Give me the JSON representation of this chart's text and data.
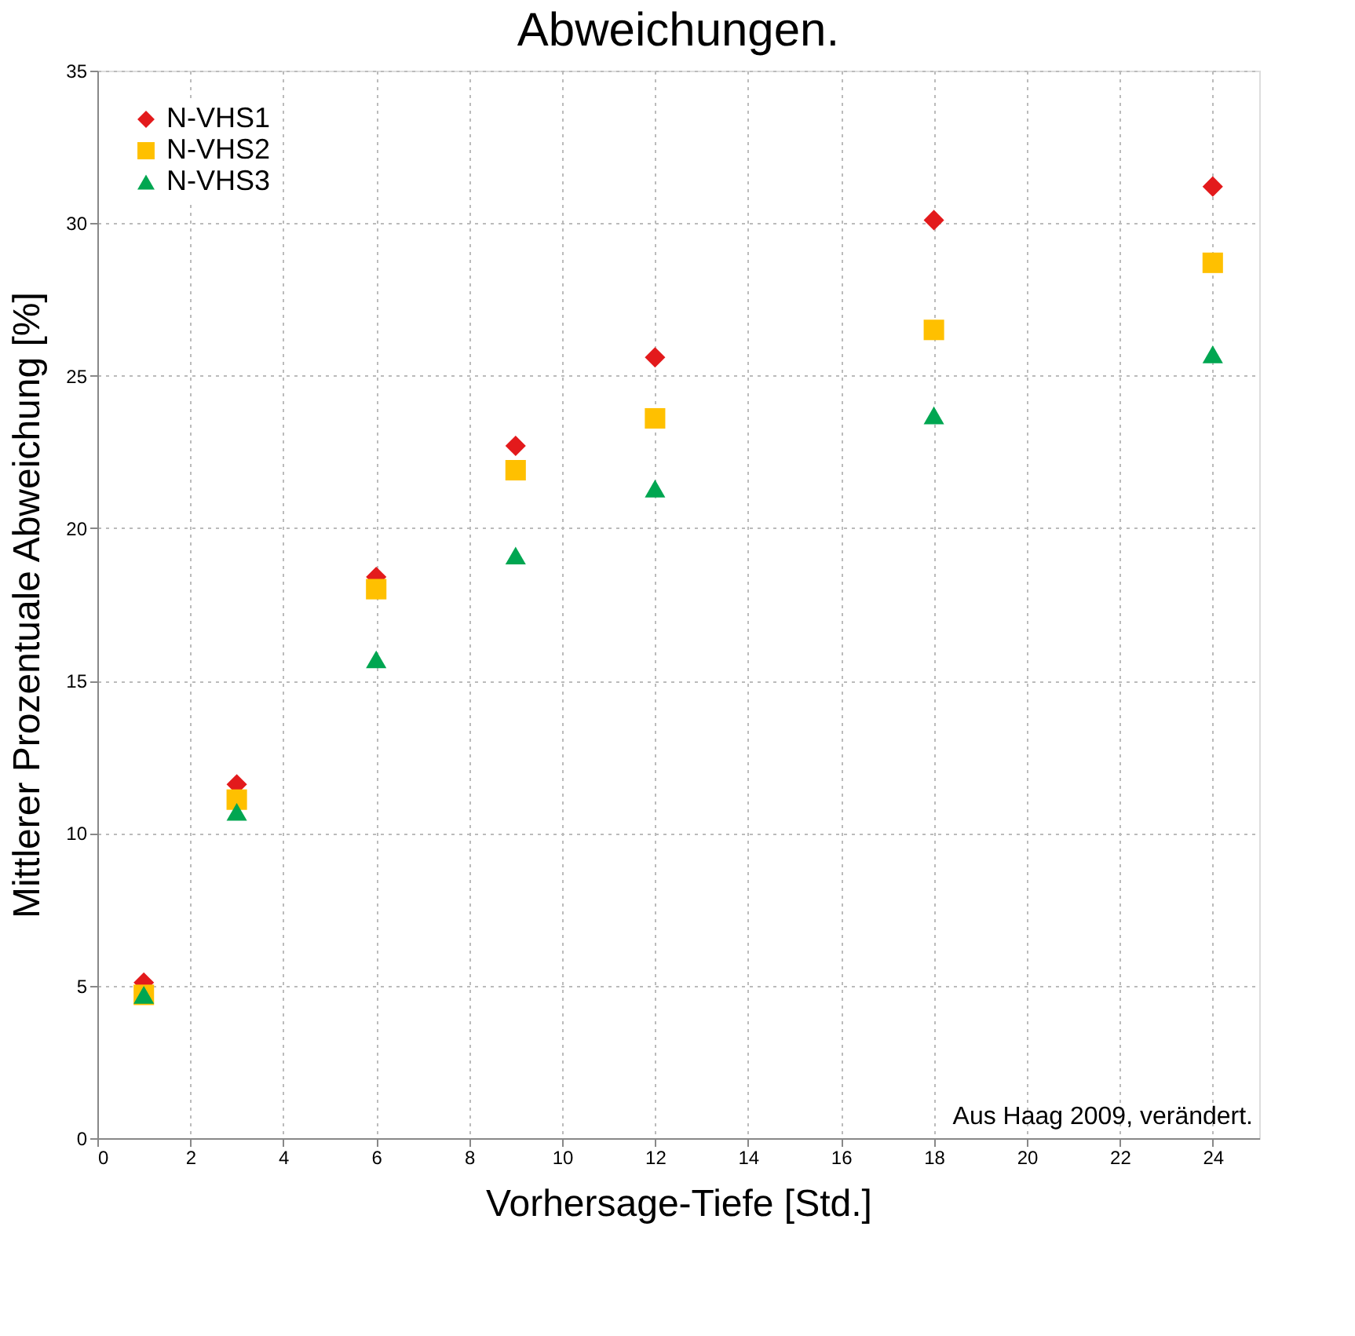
{
  "chart_data": {
    "type": "scatter",
    "title": "Abweichungen.",
    "xlabel": "Vorhersage-Tiefe  [Std.]",
    "ylabel": "Mittlerer Prozentuale Abweichung  [%]",
    "x": [
      1,
      3,
      6,
      9,
      12,
      18,
      24
    ],
    "series": [
      {
        "name": "N-VHS1",
        "color": "#e31a1c",
        "marker": "diamond",
        "values": [
          5.1,
          11.6,
          18.4,
          22.7,
          25.6,
          30.1,
          31.2
        ]
      },
      {
        "name": "N-VHS2",
        "color": "#ffc000",
        "marker": "square",
        "values": [
          4.7,
          11.1,
          18.0,
          21.9,
          23.6,
          26.5,
          28.7
        ]
      },
      {
        "name": "N-VHS3",
        "color": "#00a651",
        "marker": "triangle",
        "values": [
          4.7,
          10.7,
          15.7,
          19.1,
          21.3,
          23.7,
          25.7
        ]
      }
    ],
    "xlim": [
      0,
      25
    ],
    "xticks": [
      0,
      2,
      4,
      6,
      8,
      10,
      12,
      14,
      16,
      18,
      20,
      22,
      24
    ],
    "ylim": [
      0,
      35
    ],
    "yticks": [
      0,
      5,
      10,
      15,
      20,
      25,
      30,
      35
    ],
    "grid": true,
    "legend": "top left",
    "annotations": [
      {
        "text": "Aus Haag 2009, verändert."
      }
    ]
  }
}
